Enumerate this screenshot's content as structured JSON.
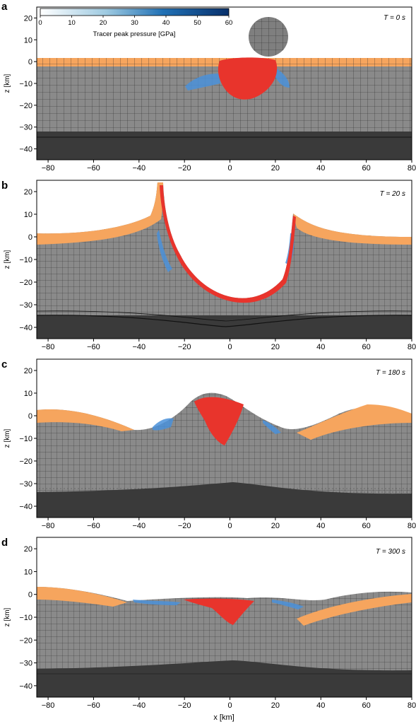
{
  "figure": {
    "panels": [
      {
        "letter": "a",
        "time_label": "T = 0 s"
      },
      {
        "letter": "b",
        "time_label": "T = 20 s"
      },
      {
        "letter": "c",
        "time_label": "T = 180 s"
      },
      {
        "letter": "d",
        "time_label": "T = 300 s"
      }
    ],
    "colorbar": {
      "label": "Tracer peak pressure [GPa]",
      "ticks": [
        "0",
        "10",
        "20",
        "30",
        "40",
        "50",
        "60"
      ],
      "colors": [
        "#ffffff",
        "#08306b"
      ]
    },
    "axes": {
      "xlabel": "x [km]",
      "ylabel": "z [km]",
      "xticks": [
        "−80",
        "−60",
        "−40",
        "−20",
        "0",
        "20",
        "40",
        "60",
        "80"
      ],
      "xtick_values": [
        -80,
        -60,
        -40,
        -20,
        0,
        20,
        40,
        60,
        80
      ],
      "yticks": [
        "20",
        "10",
        "0",
        "−10",
        "−20",
        "−30",
        "−40"
      ],
      "ytick_values": [
        20,
        10,
        0,
        -10,
        -20,
        -30,
        -40
      ],
      "xlim": [
        -85,
        80
      ],
      "ylim": [
        -45,
        25
      ]
    },
    "materials": {
      "sediment": "#f6a55e",
      "crust": "#8a8a8a",
      "mantle": "#3a3a3a",
      "impactor": "#7f7f7f",
      "melt": "#e8342c",
      "shock": "#4a90d9"
    }
  }
}
